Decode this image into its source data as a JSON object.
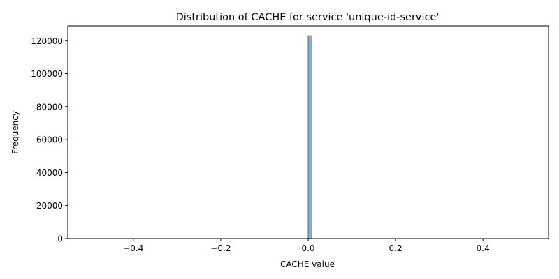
{
  "chart_data": {
    "type": "bar",
    "title": "Distribution of CACHE for service 'unique-id-service'",
    "xlabel": "CACHE value",
    "ylabel": "Frequency",
    "xlim": [
      -0.55,
      0.55
    ],
    "ylim": [
      0,
      129000
    ],
    "x_ticks": [
      -0.4,
      -0.2,
      0.0,
      0.2,
      0.4
    ],
    "x_tick_labels": [
      "−0.4",
      "−0.2",
      "0.0",
      "0.2",
      "0.4"
    ],
    "y_ticks": [
      0,
      20000,
      40000,
      60000,
      80000,
      100000,
      120000
    ],
    "y_tick_labels": [
      "0",
      "20000",
      "40000",
      "60000",
      "80000",
      "100000",
      "120000"
    ],
    "bars": [
      {
        "x_start": 0.0,
        "x_end": 0.0085,
        "value": 123000
      }
    ],
    "bar_color": "#7fb2d5",
    "bar_edge_color": "#4a4a4a",
    "grid": false,
    "legend": "none"
  }
}
